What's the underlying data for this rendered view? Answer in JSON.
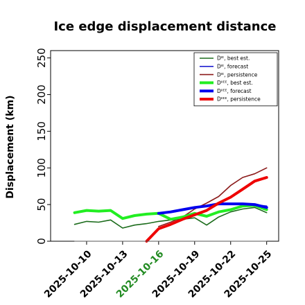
{
  "chart_data": {
    "type": "line",
    "title": "Ice edge displacement distance",
    "ylabel": "Displacement (km)",
    "xlabel": "",
    "ylim": [
      0,
      260
    ],
    "xlim": [
      "2025-10-07",
      "2025-10-26"
    ],
    "yticks": [
      0,
      50,
      100,
      150,
      200,
      250
    ],
    "xticks": [
      {
        "label": "2025-10-10",
        "date": "2025-10-10",
        "color": "#000000"
      },
      {
        "label": "2025-10-13",
        "date": "2025-10-13",
        "color": "#000000"
      },
      {
        "label": "2025-10-16",
        "date": "2025-10-16",
        "color": "#228b22"
      },
      {
        "label": "2025-10-19",
        "date": "2025-10-19",
        "color": "#000000"
      },
      {
        "label": "2025-10-22",
        "date": "2025-10-22",
        "color": "#000000"
      },
      {
        "label": "2025-10-25",
        "date": "2025-10-25",
        "color": "#000000"
      }
    ],
    "grid": false,
    "legend_position": "top-right",
    "series": [
      {
        "name": "D^IE, best est.",
        "legend_label": "Dᴵᴱ, best est.",
        "color": "#1b6b1b",
        "width": 1.6,
        "points": [
          [
            "2025-10-09",
            23
          ],
          [
            "2025-10-10",
            27
          ],
          [
            "2025-10-11",
            26
          ],
          [
            "2025-10-12",
            29
          ],
          [
            "2025-10-13",
            18
          ],
          [
            "2025-10-14",
            22
          ],
          [
            "2025-10-15",
            24
          ],
          [
            "2025-10-16",
            27
          ],
          [
            "2025-10-17",
            29
          ],
          [
            "2025-10-18",
            30
          ],
          [
            "2025-10-19",
            32
          ],
          [
            "2025-10-20",
            22
          ],
          [
            "2025-10-21",
            33
          ],
          [
            "2025-10-22",
            40
          ],
          [
            "2025-10-23",
            44
          ],
          [
            "2025-10-24",
            46
          ],
          [
            "2025-10-25",
            39
          ]
        ]
      },
      {
        "name": "D^IE, forecast",
        "legend_label": "Dᴵᴱ, forecast",
        "color": "#1f1fd0",
        "width": 1.6,
        "points": [
          [
            "2025-10-16",
            38
          ],
          [
            "2025-10-17",
            40
          ],
          [
            "2025-10-18",
            43
          ],
          [
            "2025-10-19",
            46
          ],
          [
            "2025-10-20",
            48
          ],
          [
            "2025-10-21",
            51
          ],
          [
            "2025-10-22",
            51
          ],
          [
            "2025-10-23",
            51
          ],
          [
            "2025-10-24",
            50
          ],
          [
            "2025-10-25",
            48
          ]
        ]
      },
      {
        "name": "D^IE, persistence",
        "legend_label": "Dᴵᴱ, persistence",
        "color": "#8b1a1a",
        "width": 1.6,
        "points": [
          [
            "2025-10-16",
            20
          ],
          [
            "2025-10-17",
            26
          ],
          [
            "2025-10-18",
            33
          ],
          [
            "2025-10-19",
            44
          ],
          [
            "2025-10-20",
            52
          ],
          [
            "2025-10-21",
            61
          ],
          [
            "2025-10-22",
            76
          ],
          [
            "2025-10-23",
            87
          ],
          [
            "2025-10-24",
            92
          ],
          [
            "2025-10-25",
            100
          ]
        ]
      },
      {
        "name": "D^IIEE, best est.",
        "legend_label": "Dᴵᴵᴱᴱ, best est.",
        "color": "#22ee22",
        "width": 4,
        "points": [
          [
            "2025-10-09",
            39
          ],
          [
            "2025-10-10",
            42
          ],
          [
            "2025-10-11",
            41
          ],
          [
            "2025-10-12",
            42
          ],
          [
            "2025-10-13",
            31
          ],
          [
            "2025-10-14",
            35
          ],
          [
            "2025-10-15",
            37
          ],
          [
            "2025-10-16",
            38
          ],
          [
            "2025-10-17",
            30
          ],
          [
            "2025-10-18",
            33
          ],
          [
            "2025-10-19",
            38
          ],
          [
            "2025-10-20",
            34
          ],
          [
            "2025-10-21",
            40
          ],
          [
            "2025-10-22",
            43
          ],
          [
            "2025-10-23",
            48
          ],
          [
            "2025-10-24",
            49
          ],
          [
            "2025-10-25",
            43
          ]
        ]
      },
      {
        "name": "D^IIEE, forecast",
        "legend_label": "Dᴵᴵᴱᴱ, forecast",
        "color": "#0000ee",
        "width": 4,
        "points": [
          [
            "2025-10-16",
            38
          ],
          [
            "2025-10-17",
            40
          ],
          [
            "2025-10-18",
            43
          ],
          [
            "2025-10-19",
            46
          ],
          [
            "2025-10-20",
            48
          ],
          [
            "2025-10-21",
            51
          ],
          [
            "2025-10-22",
            51
          ],
          [
            "2025-10-23",
            51
          ],
          [
            "2025-10-24",
            50
          ],
          [
            "2025-10-25",
            46
          ]
        ]
      },
      {
        "name": "D^IIEE, persistence",
        "legend_label": "Dᴵᴵᴱᴱ, persistence",
        "color": "#ee0000",
        "width": 4,
        "points": [
          [
            "2025-10-15",
            0
          ],
          [
            "2025-10-16",
            17
          ],
          [
            "2025-10-17",
            23
          ],
          [
            "2025-10-18",
            30
          ],
          [
            "2025-10-19",
            36
          ],
          [
            "2025-10-20",
            42
          ],
          [
            "2025-10-21",
            52
          ],
          [
            "2025-10-22",
            60
          ],
          [
            "2025-10-23",
            71
          ],
          [
            "2025-10-24",
            82
          ],
          [
            "2025-10-25",
            87
          ]
        ]
      },
      {
        "name": "zero",
        "legend_label": "",
        "color": "#555555",
        "width": 1,
        "points": [
          [
            "2025-10-09",
            0
          ],
          [
            "2025-10-25",
            0
          ]
        ]
      }
    ]
  }
}
